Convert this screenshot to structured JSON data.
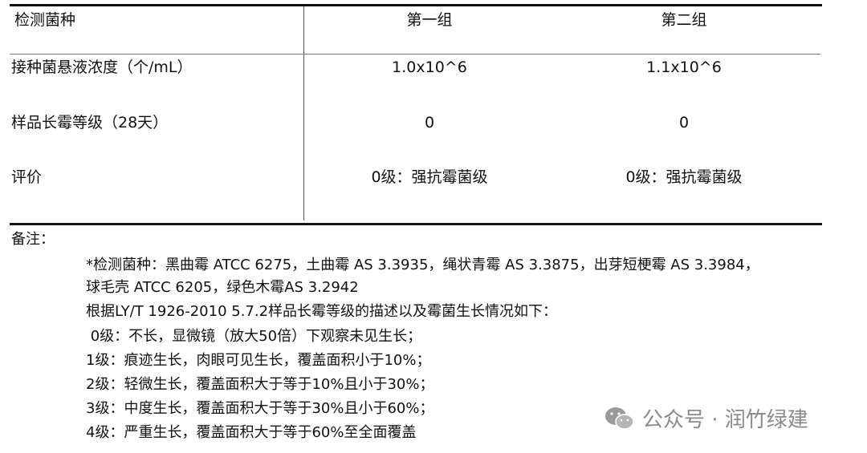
{
  "table": {
    "header": [
      "检测菌种",
      "第一组",
      "第二组"
    ],
    "rows": [
      [
        "接种菌悬液浓度（个/mL）",
        "1.0x10^6",
        "1.1x10^6"
      ],
      [
        "样品长霉等级（28天）",
        "0",
        "0"
      ],
      [
        "评价",
        "0级：强抗霉菌级",
        "0级：强抗霉菌级"
      ]
    ]
  },
  "notes": {
    "label": "备注：",
    "lines": [
      "*检测菌种：黑曲霉 ATCC 6275，土曲霉 AS 3.3935，绳状青霉 AS 3.3875，出芽短梗霉 AS 3.3984，",
      "球毛壳 ATCC 6205，绿色木霉AS 3.2942",
      "根据LY/T 1926-2010 5.7.2样品长霉等级的描述以及霉菌生长情况如下：",
      " 0级：不长，显微镜（放大50倍）下观察未见生长；",
      "1级：痕迹生长，肉眼可见生长，覆盖面积小于10%；",
      "2级：轻微生长，覆盖面积大于等于10%且小于30%；",
      "3级：中度生长，覆盖面积大于等于30%且小于60%；",
      "4级：严重生长，覆盖面积大于等于60%至全面覆盖"
    ]
  },
  "watermark": {
    "text": "公众号 · 润竹绿建",
    "icon": "wechat-icon"
  }
}
